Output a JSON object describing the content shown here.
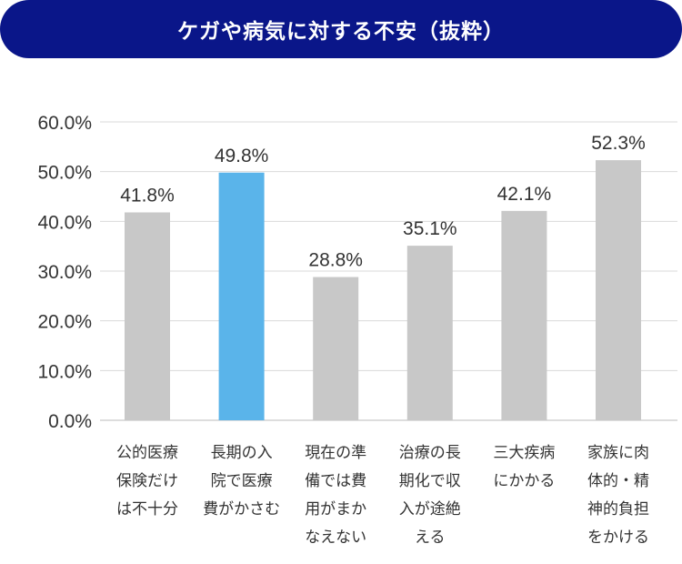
{
  "title": "ケガや病気に対する不安（抜粋）",
  "chart_data": {
    "type": "bar",
    "title": "ケガや病気に対する不安（抜粋）",
    "xlabel": "",
    "ylabel": "",
    "ylim": [
      0,
      60
    ],
    "yticks": [
      "0.0%",
      "10.0%",
      "20.0%",
      "30.0%",
      "40.0%",
      "50.0%",
      "60.0%"
    ],
    "grid": true,
    "categories": [
      [
        "公的医療",
        "保険だけ",
        "は不十分"
      ],
      [
        "長期の入",
        "院で医療",
        "費がかさむ"
      ],
      [
        "現在の準",
        "備では費",
        "用がまか",
        "なえない"
      ],
      [
        "治療の長",
        "期化で収",
        "入が途絶",
        "える"
      ],
      [
        "三大疾病",
        "にかかる"
      ],
      [
        "家族に肉",
        "体的・精",
        "神的負担",
        "をかける"
      ]
    ],
    "values": [
      41.8,
      49.8,
      28.8,
      35.1,
      42.1,
      52.3
    ],
    "value_labels": [
      "41.8%",
      "49.8%",
      "28.8%",
      "35.1%",
      "42.1%",
      "52.3%"
    ],
    "highlight_index": 1,
    "colors": {
      "bar": "#c8c8c8",
      "highlight": "#5ab4ea",
      "grid": "#d9d9d9",
      "text": "#333333"
    }
  }
}
